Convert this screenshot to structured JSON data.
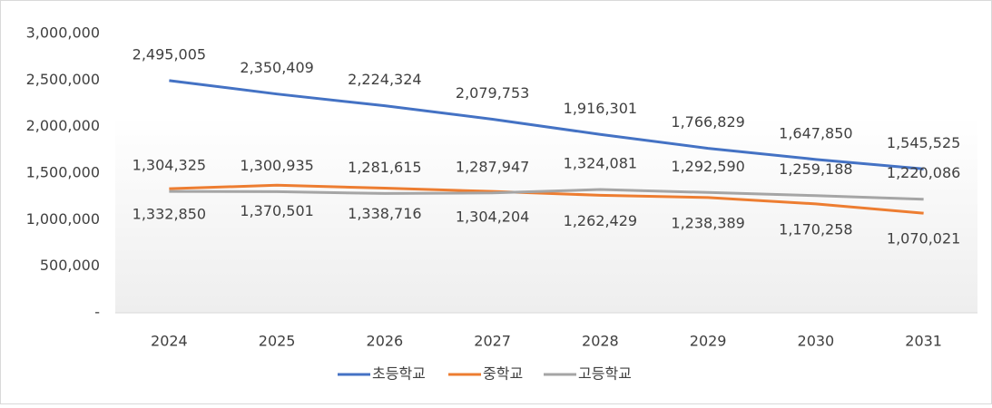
{
  "chart_data": {
    "type": "line",
    "categories": [
      "2024",
      "2025",
      "2026",
      "2027",
      "2028",
      "2029",
      "2030",
      "2031"
    ],
    "series": [
      {
        "name": "초등학교",
        "color": "#4472c4",
        "label_pos": "above",
        "values": [
          2495005,
          2350409,
          2224324,
          2079753,
          1916301,
          1766829,
          1647850,
          1545525
        ],
        "value_labels": [
          "2,495,005",
          "2,350,409",
          "2,224,324",
          "2,079,753",
          "1,916,301",
          "1,766,829",
          "1,647,850",
          "1,545,525"
        ]
      },
      {
        "name": "중학교",
        "color": "#ed7d31",
        "label_pos": "below",
        "values": [
          1332850,
          1370501,
          1338716,
          1304204,
          1262429,
          1238389,
          1170258,
          1070021
        ],
        "value_labels": [
          "1,332,850",
          "1,370,501",
          "1,338,716",
          "1,304,204",
          "1,262,429",
          "1,238,389",
          "1,170,258",
          "1,070,021"
        ]
      },
      {
        "name": "고등학교",
        "color": "#a5a5a5",
        "label_pos": "above",
        "values": [
          1304325,
          1300935,
          1281615,
          1287947,
          1324081,
          1292590,
          1259188,
          1220086
        ],
        "value_labels": [
          "1,304,325",
          "1,300,935",
          "1,281,615",
          "1,287,947",
          "1,324,081",
          "1,292,590",
          "1,259,188",
          "1,220,086"
        ]
      }
    ],
    "ylim": [
      0,
      3000000
    ],
    "yticks": [
      {
        "value": 0,
        "label": "-"
      },
      {
        "value": 500000,
        "label": "500,000"
      },
      {
        "value": 1000000,
        "label": "1,000,000"
      },
      {
        "value": 1500000,
        "label": "1,500,000"
      },
      {
        "value": 2000000,
        "label": "2,000,000"
      },
      {
        "value": 2500000,
        "label": "2,500,000"
      },
      {
        "value": 3000000,
        "label": "3,000,000"
      }
    ],
    "grid": false,
    "legend": "bottom"
  }
}
